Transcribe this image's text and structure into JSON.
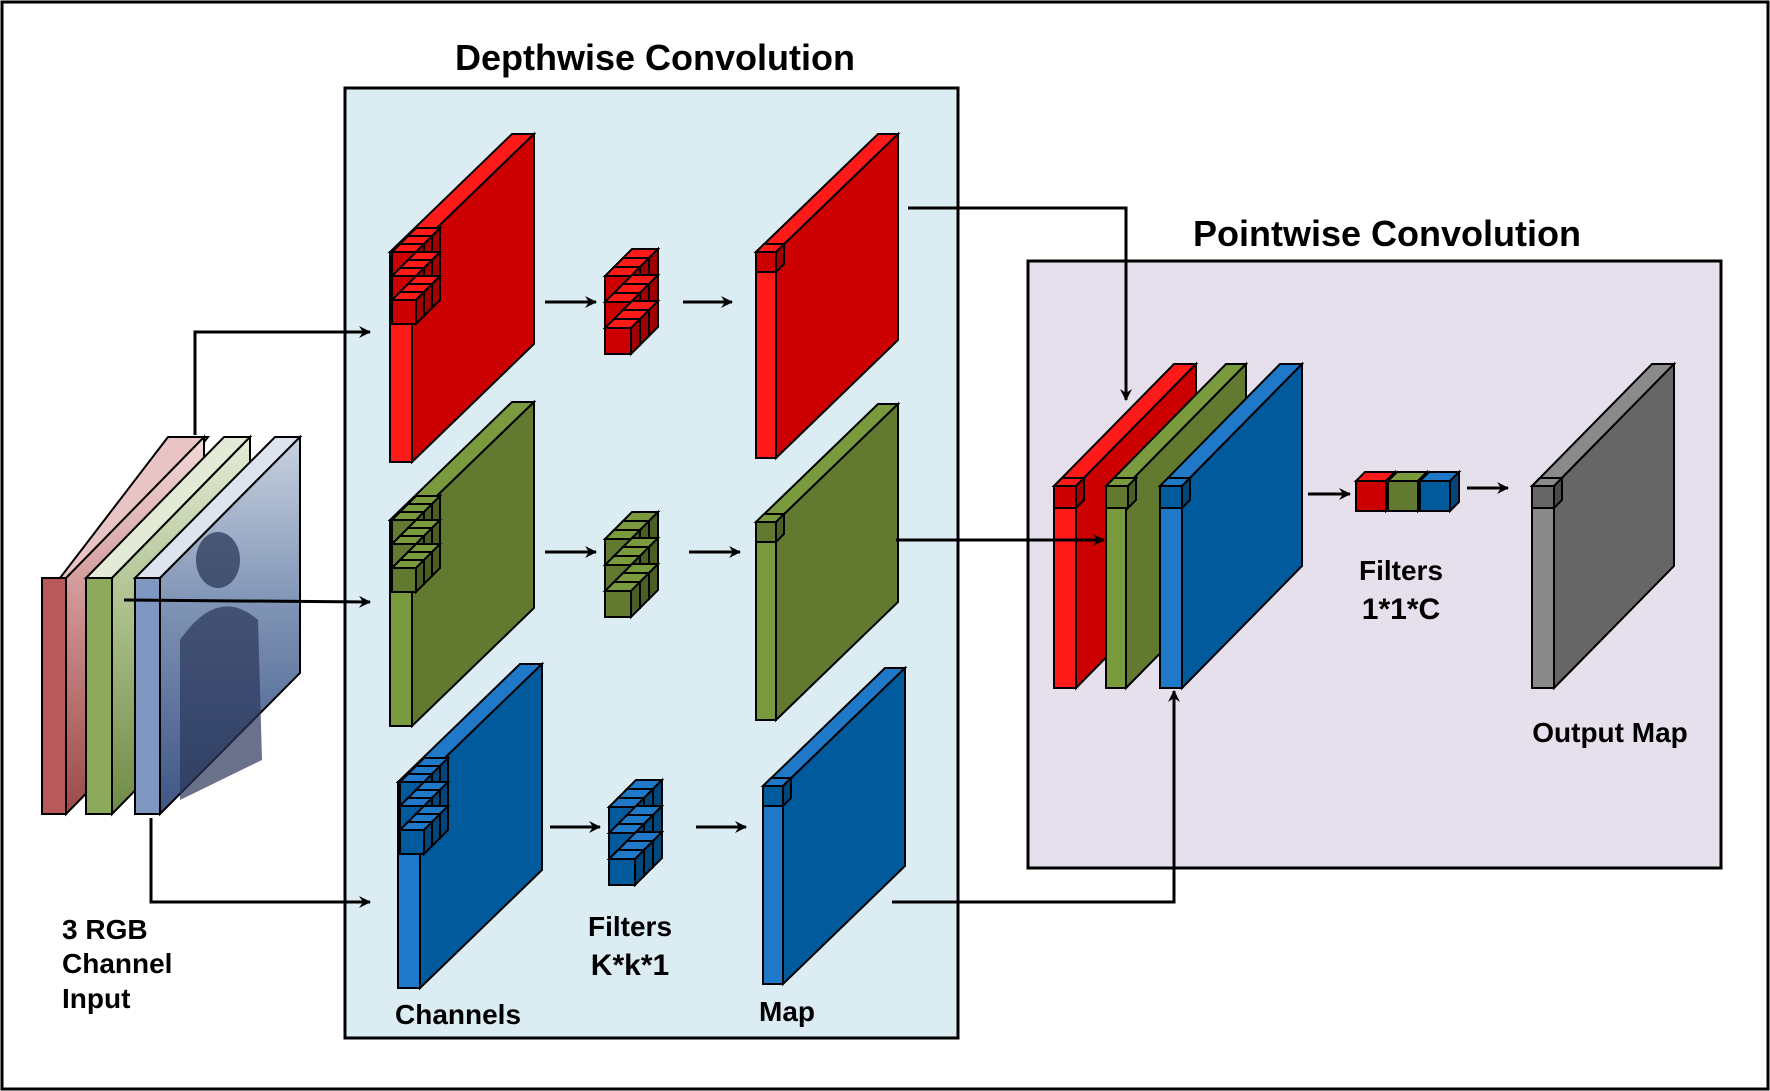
{
  "titles": {
    "depthwise": "Depthwise Convolution",
    "pointwise": "Pointwise Convolution"
  },
  "labels": {
    "input_line1": "3 RGB",
    "input_line2": "Channel",
    "input_line3": "Input",
    "channels": "Channels",
    "depthwise_filters": "Filters",
    "depthwise_filter_size": "K*k*1",
    "map": "Map",
    "pointwise_filters": "Filters",
    "pointwise_filter_size": "1*1*C",
    "output_map": "Output Map"
  },
  "colors": {
    "red_front": "#cc0000",
    "red_side": "#ff1a1a",
    "green_front": "#617a30",
    "green_side": "#7a9a3e",
    "blue_front": "#005a9c",
    "blue_side": "#1f78c8",
    "gray_front": "#666666",
    "gray_side": "#8a8a8a",
    "depthwise_bg": "#dbedf3",
    "pointwise_bg": "#e6e0ec"
  }
}
